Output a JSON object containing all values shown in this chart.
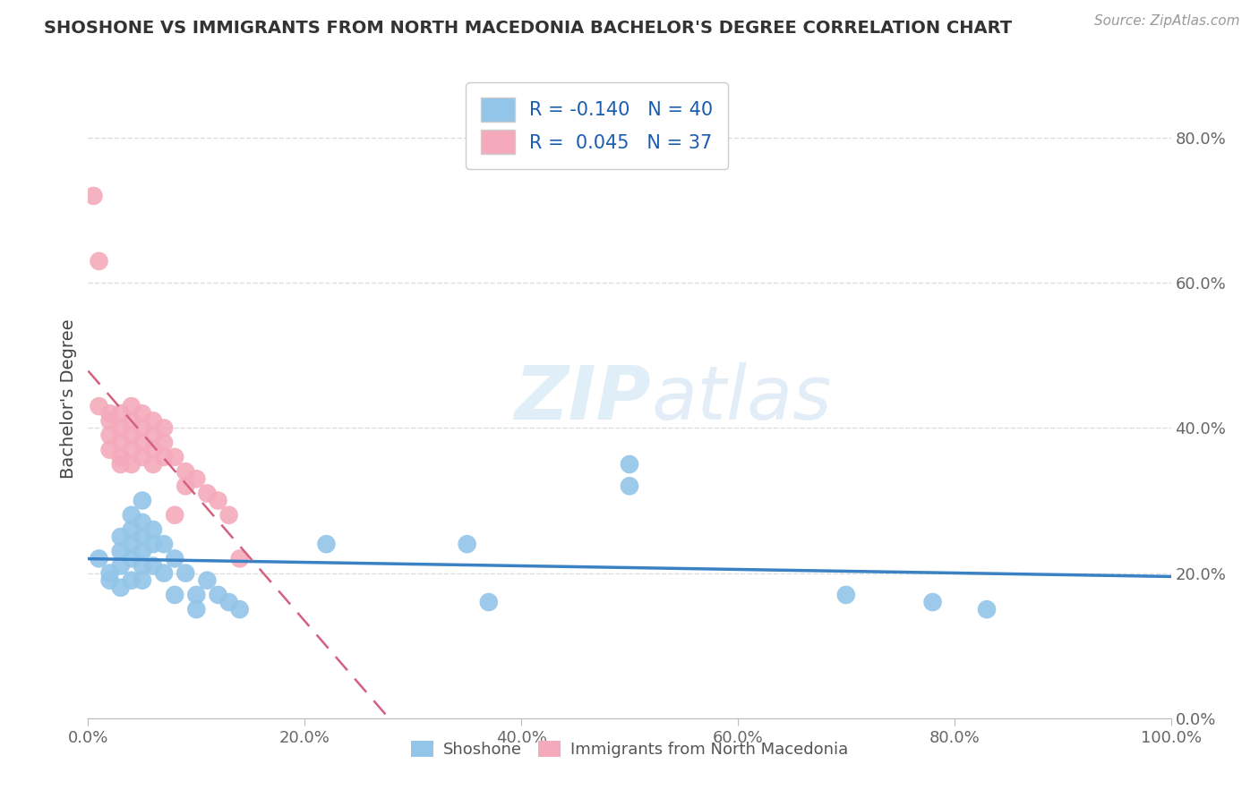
{
  "title": "SHOSHONE VS IMMIGRANTS FROM NORTH MACEDONIA BACHELOR'S DEGREE CORRELATION CHART",
  "source": "Source: ZipAtlas.com",
  "ylabel": "Bachelor's Degree",
  "blue_R": -0.14,
  "blue_N": 40,
  "pink_R": 0.045,
  "pink_N": 37,
  "blue_color": "#92C5E8",
  "pink_color": "#F4AABB",
  "blue_line_color": "#3B82C4",
  "pink_line_color": "#D46080",
  "xlim": [
    0.0,
    1.0
  ],
  "ylim": [
    0.0,
    0.88
  ],
  "xticks": [
    0.0,
    0.2,
    0.4,
    0.6,
    0.8,
    1.0
  ],
  "xtick_labels": [
    "0.0%",
    "20.0%",
    "40.0%",
    "60.0%",
    "80.0%",
    "100.0%"
  ],
  "yticks": [
    0.0,
    0.2,
    0.4,
    0.6,
    0.8
  ],
  "ytick_right_labels": [
    "0.0%",
    "20.0%",
    "40.0%",
    "60.0%",
    "80.0%"
  ],
  "blue_scatter_x": [
    0.01,
    0.02,
    0.02,
    0.03,
    0.03,
    0.03,
    0.03,
    0.04,
    0.04,
    0.04,
    0.04,
    0.04,
    0.05,
    0.05,
    0.05,
    0.05,
    0.05,
    0.05,
    0.06,
    0.06,
    0.06,
    0.07,
    0.07,
    0.08,
    0.08,
    0.09,
    0.1,
    0.1,
    0.11,
    0.12,
    0.13,
    0.14,
    0.22,
    0.35,
    0.37,
    0.5,
    0.5,
    0.7,
    0.78,
    0.83
  ],
  "blue_scatter_y": [
    0.22,
    0.2,
    0.19,
    0.25,
    0.23,
    0.21,
    0.18,
    0.28,
    0.26,
    0.24,
    0.22,
    0.19,
    0.3,
    0.27,
    0.25,
    0.23,
    0.21,
    0.19,
    0.26,
    0.24,
    0.21,
    0.24,
    0.2,
    0.22,
    0.17,
    0.2,
    0.17,
    0.15,
    0.19,
    0.17,
    0.16,
    0.15,
    0.24,
    0.24,
    0.16,
    0.32,
    0.35,
    0.17,
    0.16,
    0.15
  ],
  "pink_scatter_x": [
    0.005,
    0.01,
    0.01,
    0.02,
    0.02,
    0.02,
    0.02,
    0.03,
    0.03,
    0.03,
    0.03,
    0.03,
    0.04,
    0.04,
    0.04,
    0.04,
    0.04,
    0.05,
    0.05,
    0.05,
    0.05,
    0.06,
    0.06,
    0.06,
    0.06,
    0.07,
    0.07,
    0.07,
    0.08,
    0.08,
    0.09,
    0.09,
    0.1,
    0.11,
    0.12,
    0.13,
    0.14
  ],
  "pink_scatter_y": [
    0.72,
    0.63,
    0.43,
    0.42,
    0.41,
    0.39,
    0.37,
    0.42,
    0.4,
    0.38,
    0.36,
    0.35,
    0.43,
    0.41,
    0.39,
    0.37,
    0.35,
    0.42,
    0.4,
    0.38,
    0.36,
    0.41,
    0.39,
    0.37,
    0.35,
    0.4,
    0.38,
    0.36,
    0.36,
    0.28,
    0.34,
    0.32,
    0.33,
    0.31,
    0.3,
    0.28,
    0.22
  ],
  "legend_blue_label": "Shoshone",
  "legend_pink_label": "Immigrants from North Macedonia",
  "grid_color": "#DDDDDD",
  "watermark_color": "#D4E8F5"
}
